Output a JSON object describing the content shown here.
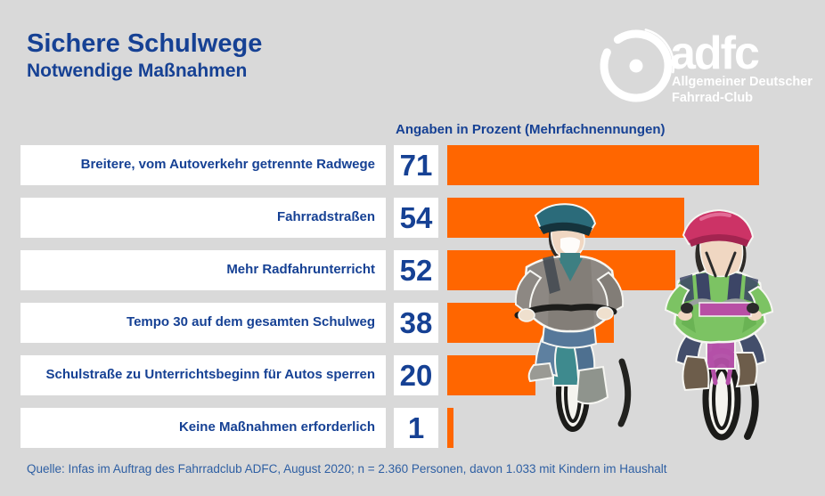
{
  "colors": {
    "background": "#d9d9d9",
    "bar": "#ff6600",
    "heading_blue": "#164194",
    "footer_blue": "#2e5fa3",
    "box_white": "#ffffff",
    "logo_white": "#ffffff"
  },
  "header": {
    "title": "Sichere Schulwege",
    "subtitle": "Notwendige Maßnahmen"
  },
  "logo": {
    "wordmark": "adfc",
    "line1": "Allgemeiner Deutscher",
    "line2": "Fahrrad-Club",
    "icon": "wheel-icon"
  },
  "chart_data": {
    "type": "bar",
    "orientation": "horizontal",
    "title": "Angaben in Prozent (Mehrfachnennungen)",
    "unit": "percent",
    "xlim": [
      0,
      71
    ],
    "grid": false,
    "legend": "none",
    "categories": [
      "Breitere, vom Autoverkehr getrennte Radwege",
      "Fahrradstraßen",
      "Mehr Radfahrunterricht",
      "Tempo 30 auf dem gesamten Schulweg",
      "Schulstraße zu Unterrichtsbeginn für Autos sperren",
      "Keine Maßnahmen erforderlich"
    ],
    "values": [
      71,
      54,
      52,
      38,
      20,
      1
    ],
    "bar_color": "#ff6600",
    "value_label_position": "left-box"
  },
  "illustration": {
    "alt": "Zwei Kinder mit Fahrradhelmen fahren auf Fahrrädern"
  },
  "footer": {
    "source": "Quelle: Infas im Auftrag des Fahrradclub ADFC, August 2020; n = 2.360 Personen, davon 1.033 mit Kindern im Haushalt"
  }
}
